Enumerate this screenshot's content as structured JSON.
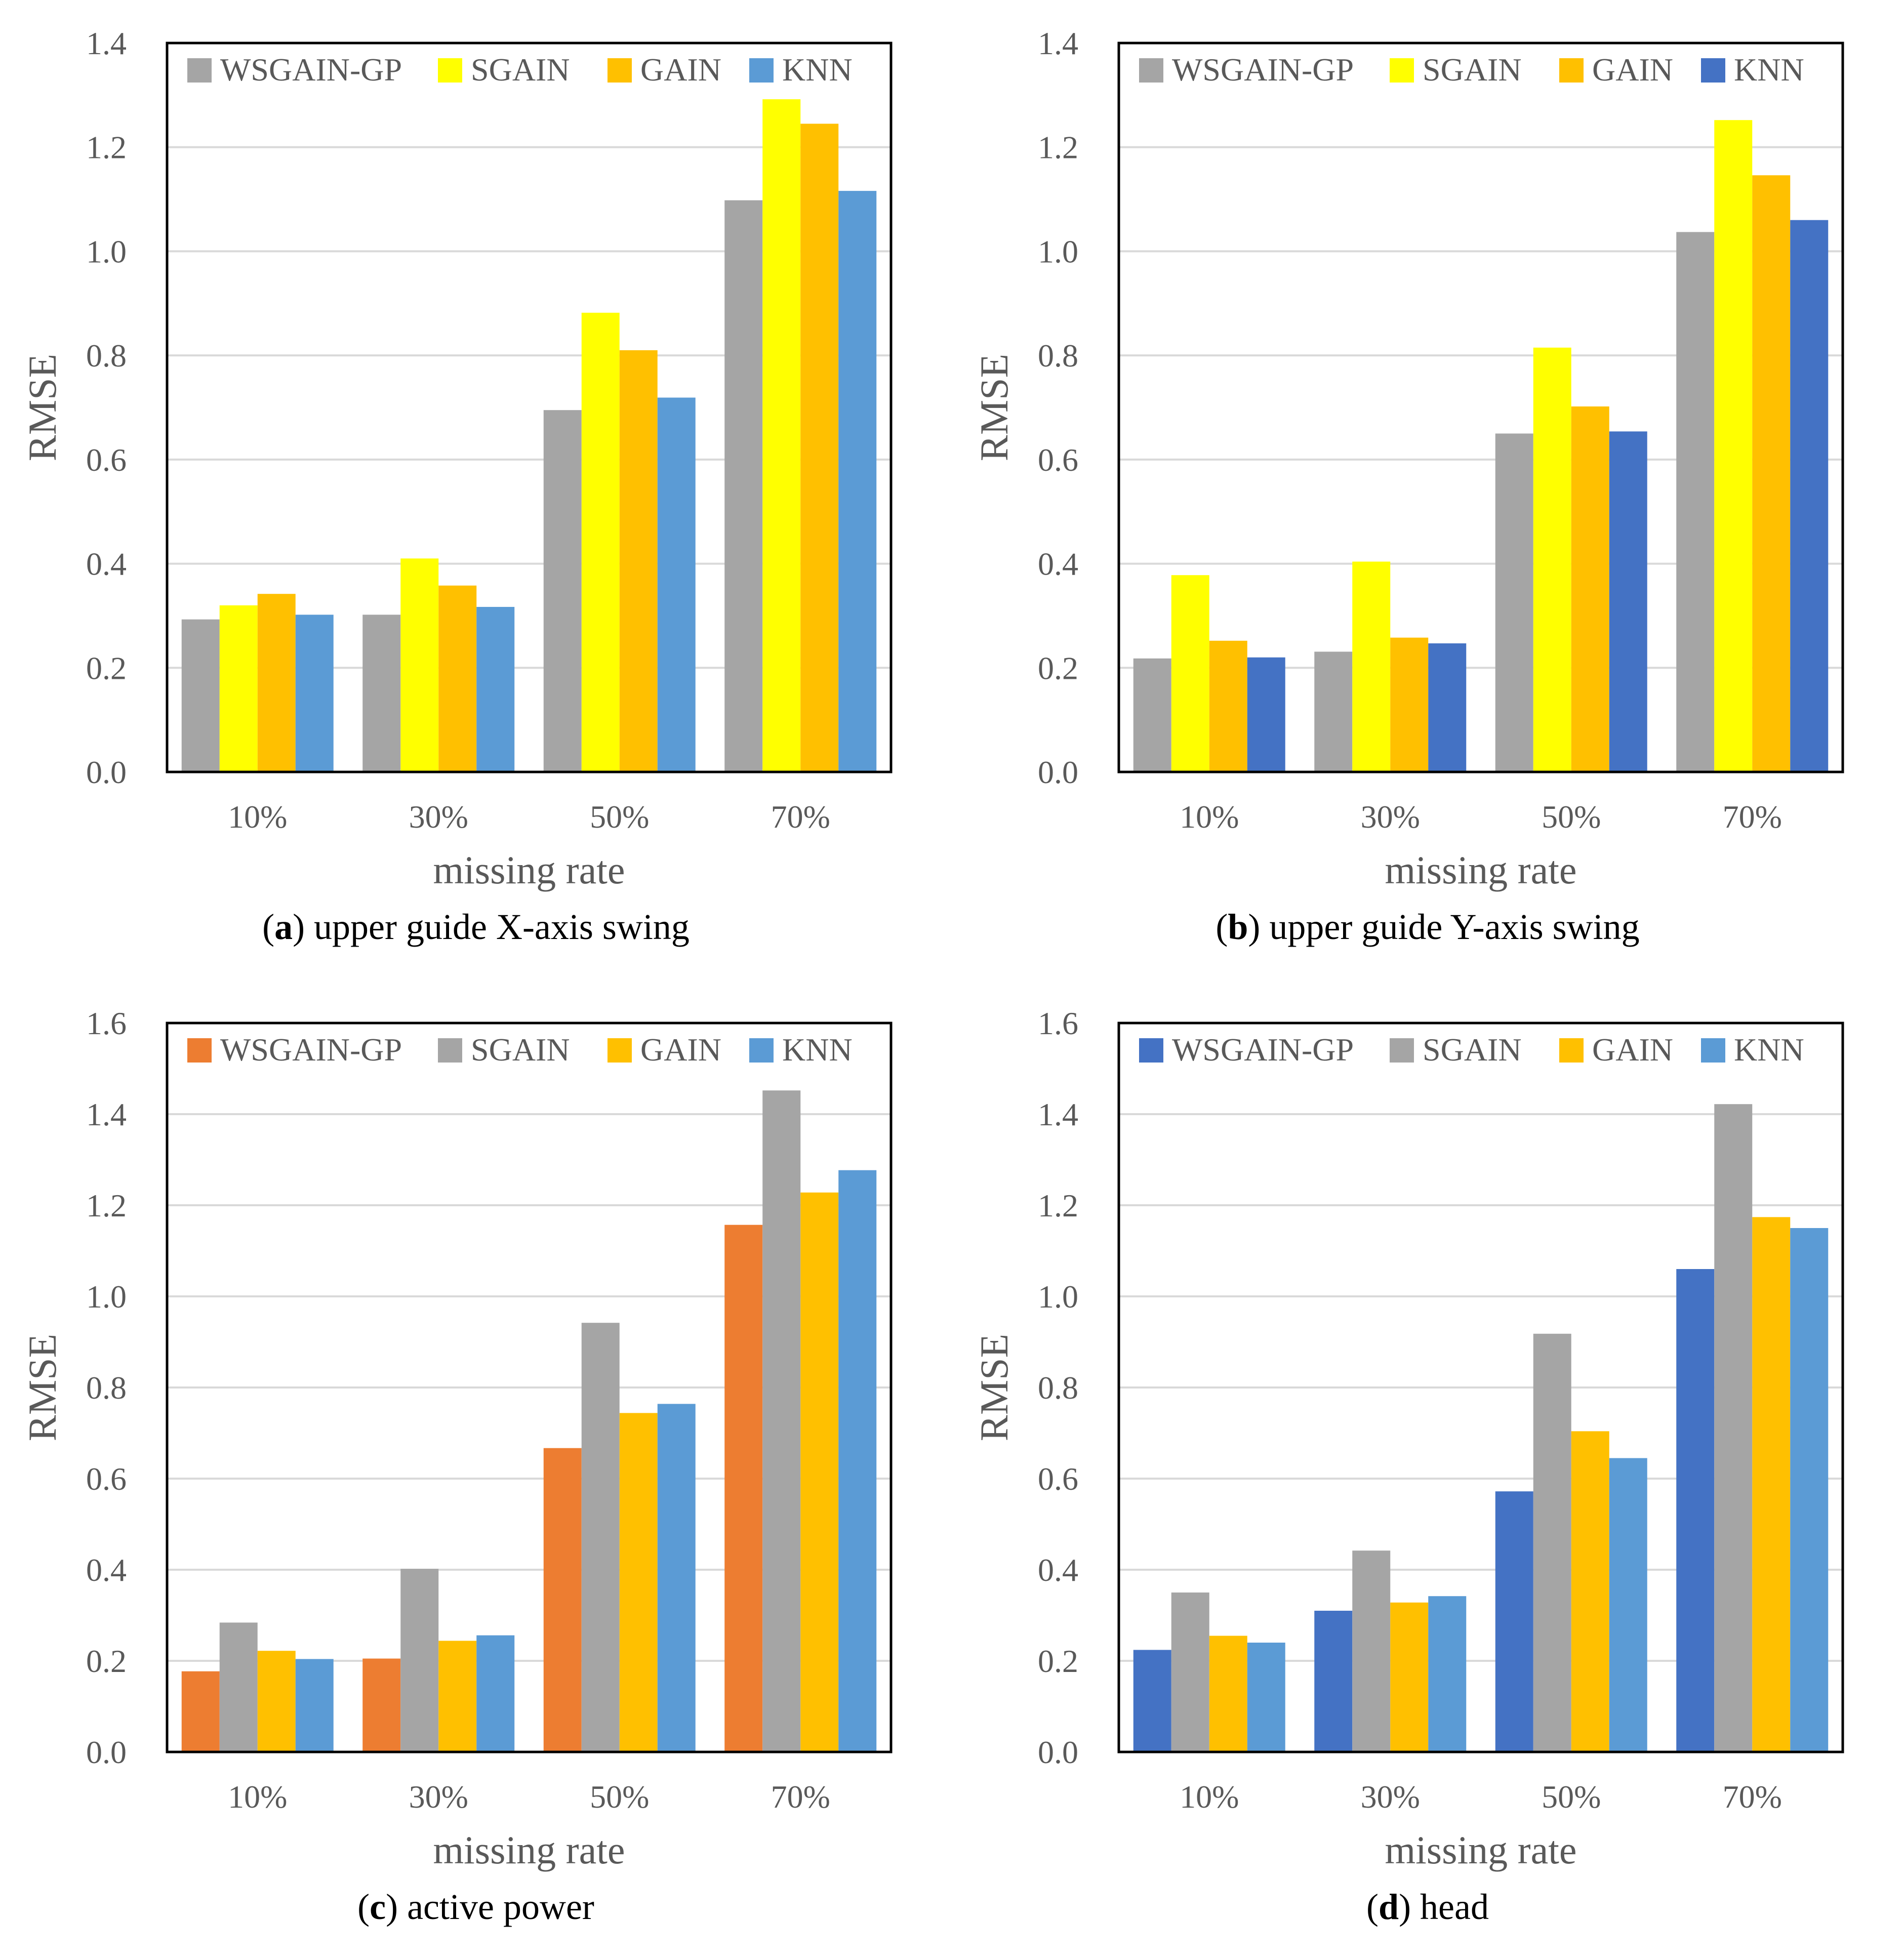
{
  "chart_data": [
    {
      "type": "bar",
      "panel_letter": "a",
      "caption": "upper guide X-axis swing",
      "categories": [
        "10%",
        "30%",
        "50%",
        "70%"
      ],
      "xlabel": "missing rate",
      "ylabel": "RMSE",
      "ylim": [
        0,
        1.4
      ],
      "yticks": [
        "0.0",
        "0.2",
        "0.4",
        "0.6",
        "0.8",
        "1.0",
        "1.2",
        "1.4"
      ],
      "legend_position": "top",
      "grid": true,
      "series": [
        {
          "name": "WSGAIN-GP",
          "color": "#A5A5A5",
          "values": [
            0.293,
            0.302,
            0.695,
            1.098
          ]
        },
        {
          "name": "SGAIN",
          "color": "#FFFF00",
          "values": [
            0.32,
            0.41,
            0.882,
            1.292
          ]
        },
        {
          "name": "GAIN",
          "color": "#FFC000",
          "values": [
            0.342,
            0.358,
            0.81,
            1.245
          ]
        },
        {
          "name": "KNN",
          "color": "#5B9BD5",
          "values": [
            0.302,
            0.317,
            0.719,
            1.116
          ]
        }
      ]
    },
    {
      "type": "bar",
      "panel_letter": "b",
      "caption": "upper guide Y-axis swing",
      "categories": [
        "10%",
        "30%",
        "50%",
        "70%"
      ],
      "xlabel": "missing rate",
      "ylabel": "RMSE",
      "ylim": [
        0,
        1.4
      ],
      "yticks": [
        "0.0",
        "0.2",
        "0.4",
        "0.6",
        "0.8",
        "1.0",
        "1.2",
        "1.4"
      ],
      "legend_position": "top",
      "grid": true,
      "series": [
        {
          "name": "WSGAIN-GP",
          "color": "#A5A5A5",
          "values": [
            0.218,
            0.231,
            0.65,
            1.037
          ]
        },
        {
          "name": "SGAIN",
          "color": "#FFFF00",
          "values": [
            0.378,
            0.404,
            0.815,
            1.252
          ]
        },
        {
          "name": "GAIN",
          "color": "#FFC000",
          "values": [
            0.252,
            0.258,
            0.702,
            1.146
          ]
        },
        {
          "name": "KNN",
          "color": "#4472C4",
          "values": [
            0.22,
            0.247,
            0.654,
            1.06
          ]
        }
      ]
    },
    {
      "type": "bar",
      "panel_letter": "c",
      "caption": "active power",
      "categories": [
        "10%",
        "30%",
        "50%",
        "70%"
      ],
      "xlabel": "missing rate",
      "ylabel": "RMSE",
      "ylim": [
        0,
        1.6
      ],
      "yticks": [
        "0.0",
        "0.2",
        "0.4",
        "0.6",
        "0.8",
        "1.0",
        "1.2",
        "1.4",
        "1.6"
      ],
      "legend_position": "top",
      "grid": true,
      "series": [
        {
          "name": "WSGAIN-GP",
          "color": "#ED7D31",
          "values": [
            0.177,
            0.205,
            0.667,
            1.157
          ]
        },
        {
          "name": "SGAIN",
          "color": "#A5A5A5",
          "values": [
            0.284,
            0.402,
            0.942,
            1.452
          ]
        },
        {
          "name": "GAIN",
          "color": "#FFC000",
          "values": [
            0.222,
            0.244,
            0.744,
            1.228
          ]
        },
        {
          "name": "KNN",
          "color": "#5B9BD5",
          "values": [
            0.204,
            0.256,
            0.764,
            1.277
          ]
        }
      ]
    },
    {
      "type": "bar",
      "panel_letter": "d",
      "caption": "head",
      "categories": [
        "10%",
        "30%",
        "50%",
        "70%"
      ],
      "xlabel": "missing rate",
      "ylabel": "RMSE",
      "ylim": [
        0,
        1.6
      ],
      "yticks": [
        "0.0",
        "0.2",
        "0.4",
        "0.6",
        "0.8",
        "1.0",
        "1.2",
        "1.4",
        "1.6"
      ],
      "legend_position": "top",
      "grid": true,
      "series": [
        {
          "name": "WSGAIN-GP",
          "color": "#4472C4",
          "values": [
            0.224,
            0.31,
            0.572,
            1.06
          ]
        },
        {
          "name": "SGAIN",
          "color": "#A5A5A5",
          "values": [
            0.35,
            0.442,
            0.918,
            1.422
          ]
        },
        {
          "name": "GAIN",
          "color": "#FFC000",
          "values": [
            0.255,
            0.328,
            0.704,
            1.174
          ]
        },
        {
          "name": "KNN",
          "color": "#5B9BD5",
          "values": [
            0.24,
            0.342,
            0.645,
            1.15
          ]
        }
      ]
    }
  ]
}
